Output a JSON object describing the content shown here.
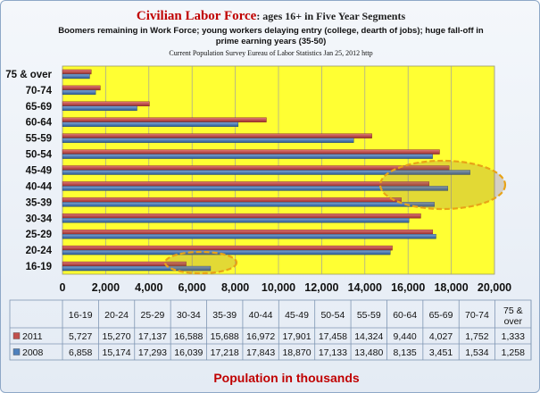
{
  "title": {
    "main": "Civilian Labor Force",
    "sub": ": ages 16+ in Five Year Segments",
    "line2": "Boomers remaining in Work Force; young workers delaying entry (college, dearth of jobs); huge fall-off in",
    "line3": "prime earning years (35-50)",
    "source": "Current Population Survey  Eureau of Labor Statistics Jan 25, 2012 http"
  },
  "chart_data": {
    "type": "bar",
    "orientation": "horizontal",
    "categories": [
      "16-19",
      "20-24",
      "25-29",
      "30-34",
      "35-39",
      "40-44",
      "45-49",
      "50-54",
      "55-59",
      "60-64",
      "65-69",
      "70-74",
      "75 & over"
    ],
    "series": [
      {
        "name": "2011",
        "color": "#c0504d",
        "values": [
          5727,
          15270,
          17137,
          16588,
          15688,
          16972,
          17901,
          17458,
          14324,
          9440,
          4027,
          1752,
          1333
        ],
        "labels": [
          "5,727",
          "15,270",
          "17,137",
          "16,588",
          "15,688",
          "16,972",
          "17,901",
          "17,458",
          "14,324",
          "9,440",
          "4,027",
          "1,752",
          "1,333"
        ]
      },
      {
        "name": "2008",
        "color": "#4f81bd",
        "values": [
          6858,
          15174,
          17293,
          16039,
          17218,
          17843,
          18870,
          17133,
          13480,
          8135,
          3451,
          1534,
          1258
        ],
        "labels": [
          "6,858",
          "15,174",
          "17,293",
          "16,039",
          "17,218",
          "17,843",
          "18,870",
          "17,133",
          "13,480",
          "8,135",
          "3,451",
          "1,534",
          "1,258"
        ]
      }
    ],
    "xlim": [
      0,
      20000
    ],
    "x_ticks": [
      "0",
      "2,000",
      "4,000",
      "6,000",
      "8,000",
      "10,000",
      "12,000",
      "14,000",
      "16,000",
      "18,000",
      "20,000"
    ],
    "xlabel": "Population in thousands",
    "ylabel": "",
    "plot_background": "#ffff33",
    "grid": true,
    "legend": "data-table",
    "highlight_color": "#e8a317"
  }
}
